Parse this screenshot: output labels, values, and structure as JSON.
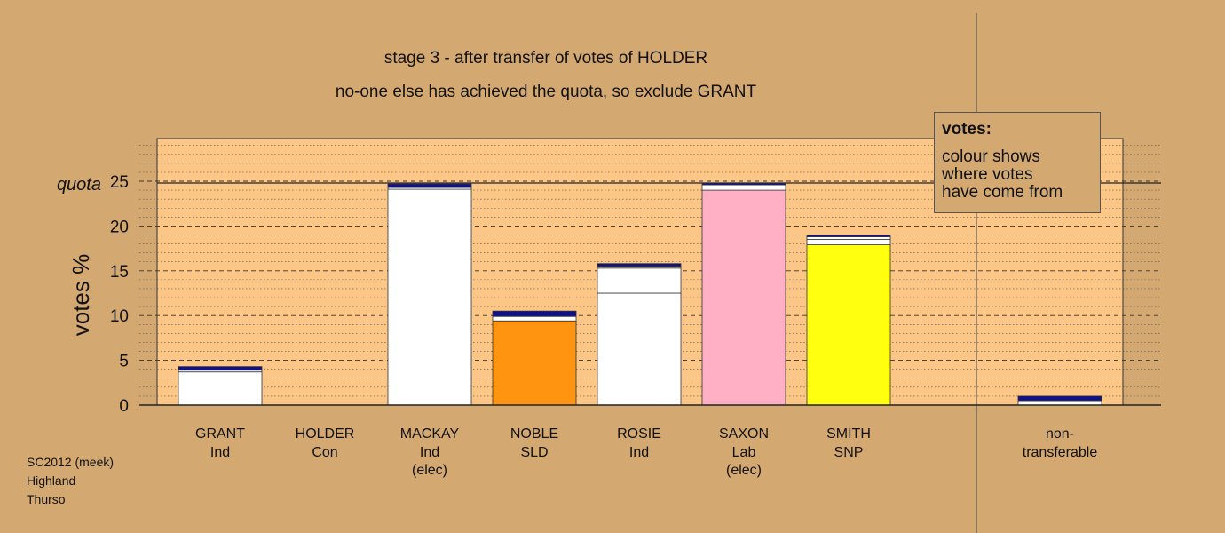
{
  "title": "stage 3 - after transfer of votes of HOLDER",
  "subtitle": "no-one else has achieved the quota, so exclude GRANT",
  "legend": {
    "heading": "votes:",
    "lines": [
      "colour shows",
      "where votes",
      "have come from"
    ]
  },
  "footer": [
    "SC2012 (meek)",
    "Highland",
    "Thurso"
  ],
  "colors": {
    "background": "#d4a971",
    "plot_area": "#fcc686",
    "ind": "#ffffff",
    "sld": "#ff9410",
    "lab": "#ffb0c4",
    "snp": "#ffff10",
    "con_transfer": "#10108c"
  },
  "chart_data": {
    "type": "bar",
    "stacked": true,
    "ylabel": "votes %",
    "ylim": [
      0,
      30
    ],
    "yticks": [
      0,
      5,
      10,
      15,
      20,
      25
    ],
    "quota": 24.8,
    "quota_label": "quota",
    "grid": true,
    "legend_placement": "top-right",
    "categories": [
      {
        "name": "GRANT",
        "party": "Ind",
        "note": ""
      },
      {
        "name": "HOLDER",
        "party": "Con",
        "note": ""
      },
      {
        "name": "MACKAY",
        "party": "Ind",
        "note": "(elec)"
      },
      {
        "name": "NOBLE",
        "party": "SLD",
        "note": ""
      },
      {
        "name": "ROSIE",
        "party": "Ind",
        "note": ""
      },
      {
        "name": "SAXON",
        "party": "Lab",
        "note": "(elec)"
      },
      {
        "name": "SMITH",
        "party": "SNP",
        "note": ""
      }
    ],
    "nontransferable_label": [
      "non-",
      "transferable"
    ],
    "bars": [
      {
        "segments": [
          {
            "value": 3.7,
            "color": "#ffffff"
          },
          {
            "value": 0.2,
            "color": "#ffffff"
          },
          {
            "value": 0.4,
            "color": "#10108c"
          }
        ]
      },
      {
        "segments": []
      },
      {
        "segments": [
          {
            "value": 24.1,
            "color": "#ffffff"
          },
          {
            "value": 0.2,
            "color": "#ffffff"
          },
          {
            "value": 0.4,
            "color": "#10108c"
          }
        ]
      },
      {
        "segments": [
          {
            "value": 9.4,
            "color": "#ff9410"
          },
          {
            "value": 0.5,
            "color": "#ffffff"
          },
          {
            "value": 0.6,
            "color": "#10108c"
          }
        ]
      },
      {
        "segments": [
          {
            "value": 12.5,
            "color": "#ffffff"
          },
          {
            "value": 2.8,
            "color": "#ffffff"
          },
          {
            "value": 0.2,
            "color": "#ffffff"
          },
          {
            "value": 0.3,
            "color": "#10108c"
          }
        ]
      },
      {
        "segments": [
          {
            "value": 24.0,
            "color": "#ffb0c4"
          },
          {
            "value": 0.6,
            "color": "#ffffff"
          },
          {
            "value": 0.2,
            "color": "#10108c"
          }
        ]
      },
      {
        "segments": [
          {
            "value": 17.9,
            "color": "#ffff10"
          },
          {
            "value": 0.6,
            "color": "#ffffff"
          },
          {
            "value": 0.3,
            "color": "#ffffff"
          },
          {
            "value": 0.2,
            "color": "#10108c"
          }
        ]
      }
    ],
    "nontransferable": {
      "segments": [
        {
          "value": 0.5,
          "color": "#ffffff"
        },
        {
          "value": 0.5,
          "color": "#10108c"
        }
      ]
    }
  }
}
